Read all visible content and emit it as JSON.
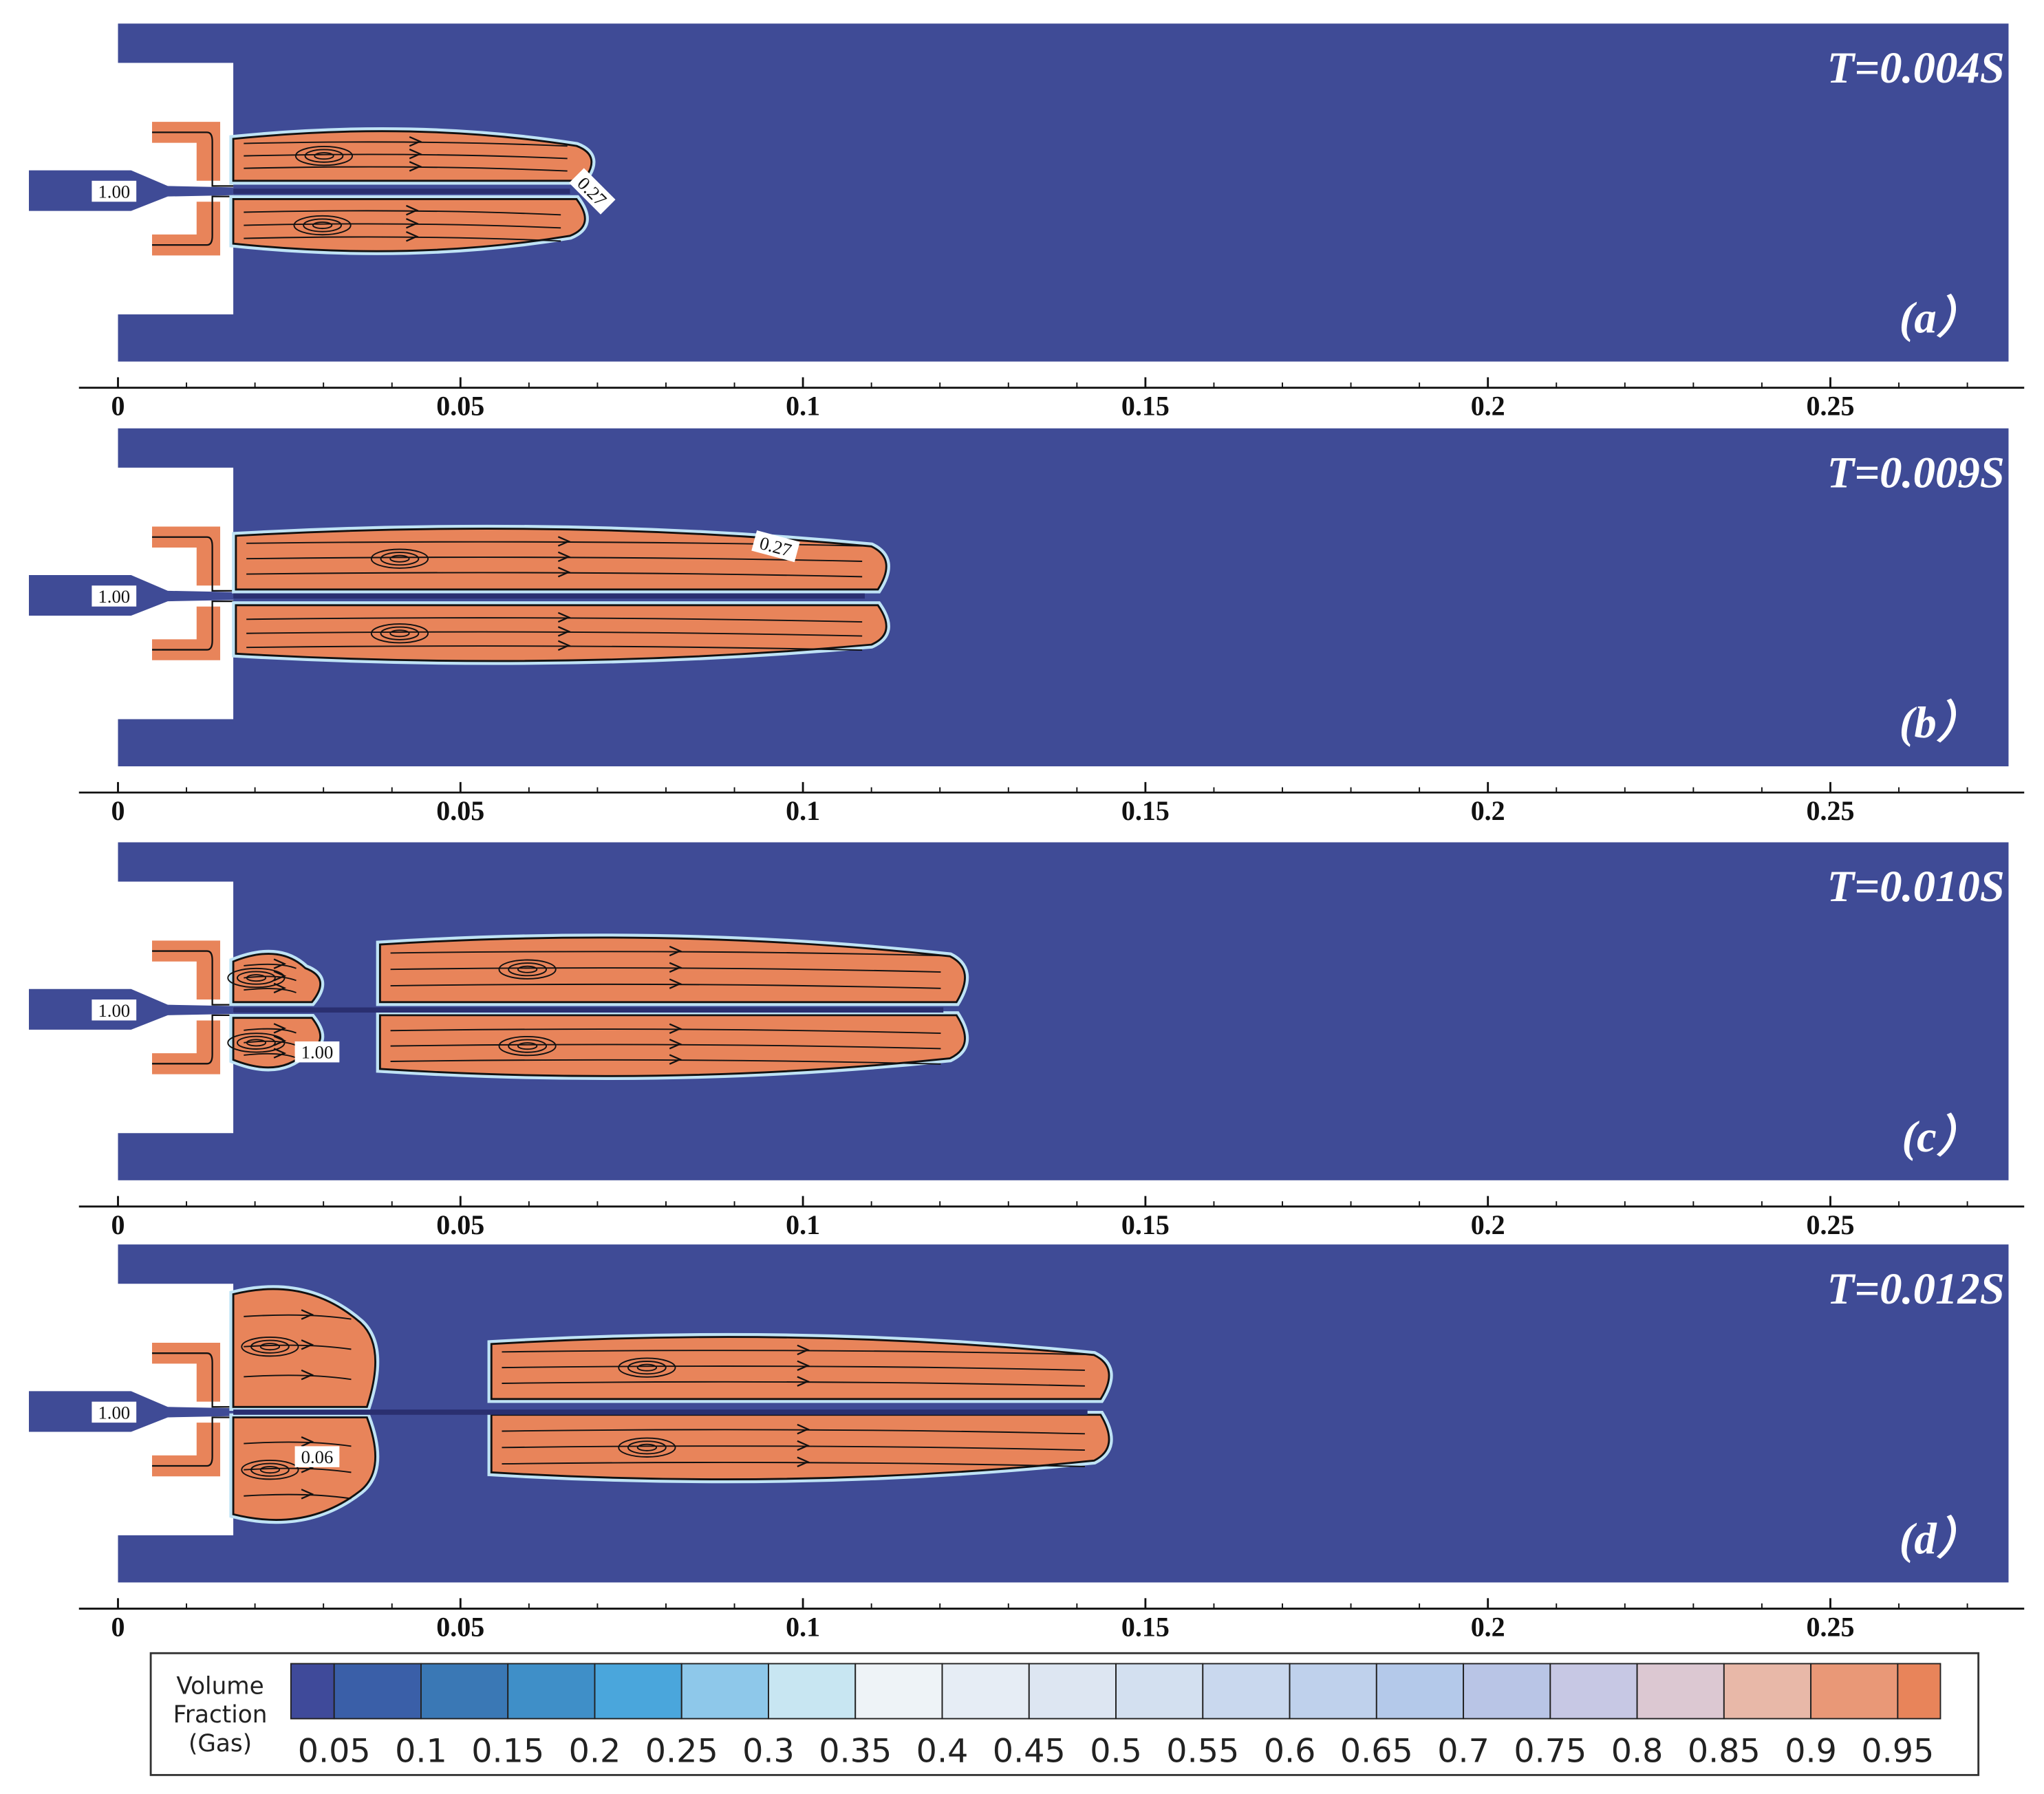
{
  "panels": [
    {
      "time": "T=0.004S",
      "label": "(a）",
      "contour_labels": [
        "1.00",
        "0.27"
      ]
    },
    {
      "time": "T=0.009S",
      "label": "(b）",
      "contour_labels": [
        "1.00",
        "0.27"
      ]
    },
    {
      "time": "T=0.010S",
      "label": "(c）",
      "contour_labels": [
        "1.00",
        "1.00"
      ]
    },
    {
      "time": "T=0.012S",
      "label": "(d）",
      "contour_labels": [
        "1.00",
        "0.06"
      ]
    }
  ],
  "x_axis": {
    "xlim": [
      -0.0057,
      0.2783
    ],
    "xticks": [
      0,
      0.05,
      0.1,
      0.15,
      0.2,
      0.25
    ]
  },
  "colorbar": {
    "title_lines": [
      "Volume",
      "Fraction",
      "(Gas)"
    ],
    "ticks": [
      0.05,
      0.1,
      0.15,
      0.2,
      0.25,
      0.3,
      0.35,
      0.4,
      0.45,
      0.5,
      0.55,
      0.6,
      0.65,
      0.7,
      0.75,
      0.8,
      0.85,
      0.9,
      0.95
    ],
    "colors": [
      "#3f4a9a",
      "#3a5fa8",
      "#3a78b5",
      "#3f8fc8",
      "#4aa6dc",
      "#8ec8ea",
      "#c8e6f2",
      "#eef3f7",
      "#e6edf5",
      "#dde6f2",
      "#d3e0f0",
      "#c9d8ee",
      "#bfd1ec",
      "#b4c9ea",
      "#b9c5e6",
      "#c7c8e4",
      "#dcc8d2",
      "#e8b8a8",
      "#e99877",
      "#e8845a"
    ]
  }
}
